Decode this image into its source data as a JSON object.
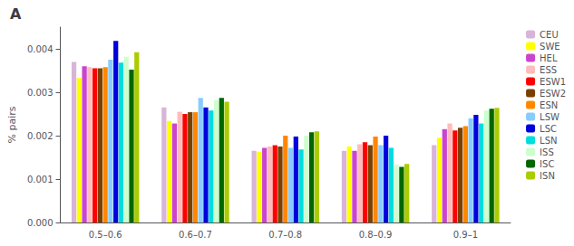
{
  "chart_data": {
    "type": "bar",
    "title": "A",
    "ylabel": "% pairs",
    "categories": [
      "0.5–0.6",
      "0.6–0.7",
      "0.7–0.8",
      "0.8–0.9",
      "0.9–1"
    ],
    "series": [
      {
        "name": "CEU",
        "color": "#d8b4d8",
        "values": [
          0.0037,
          0.00265,
          0.00165,
          0.00165,
          0.00178
        ]
      },
      {
        "name": "SWE",
        "color": "#ffff00",
        "values": [
          0.00333,
          0.00234,
          0.00163,
          0.00175,
          0.00195
        ]
      },
      {
        "name": "HEL",
        "color": "#cc44cc",
        "values": [
          0.0036,
          0.00228,
          0.00172,
          0.00165,
          0.00215
        ]
      },
      {
        "name": "ESS",
        "color": "#ffbbbb",
        "values": [
          0.00358,
          0.00255,
          0.00175,
          0.0018,
          0.00228
        ]
      },
      {
        "name": "ESW1",
        "color": "#ff0000",
        "values": [
          0.00355,
          0.0025,
          0.00178,
          0.00185,
          0.00212
        ]
      },
      {
        "name": "ESW2",
        "color": "#7B3F00",
        "values": [
          0.00355,
          0.00254,
          0.00175,
          0.00178,
          0.00218
        ]
      },
      {
        "name": "ESN",
        "color": "#ff8800",
        "values": [
          0.00358,
          0.00254,
          0.002,
          0.00198,
          0.00222
        ]
      },
      {
        "name": "LSW",
        "color": "#88ccff",
        "values": [
          0.00375,
          0.00287,
          0.00172,
          0.00178,
          0.0024
        ]
      },
      {
        "name": "LSC",
        "color": "#0000dd",
        "values": [
          0.00418,
          0.00265,
          0.00198,
          0.002,
          0.00248
        ]
      },
      {
        "name": "LSN",
        "color": "#00dddd",
        "values": [
          0.00368,
          0.00258,
          0.00168,
          0.00172,
          0.00228
        ]
      },
      {
        "name": "ISS",
        "color": "#ccffcc",
        "values": [
          0.00382,
          0.00282,
          0.002,
          0.00133,
          0.00258
        ]
      },
      {
        "name": "ISC",
        "color": "#006600",
        "values": [
          0.00352,
          0.00287,
          0.00208,
          0.00128,
          0.00262
        ]
      },
      {
        "name": "ISN",
        "color": "#aacc00",
        "values": [
          0.00392,
          0.00278,
          0.0021,
          0.00135,
          0.00264
        ]
      }
    ],
    "ylim": [
      0.0,
      0.0045
    ],
    "yticks": [
      {
        "value": 0,
        "label": "0.000"
      },
      0.001,
      0.002,
      0.003,
      0.004
    ],
    "grid": false,
    "legend": "upper right"
  }
}
